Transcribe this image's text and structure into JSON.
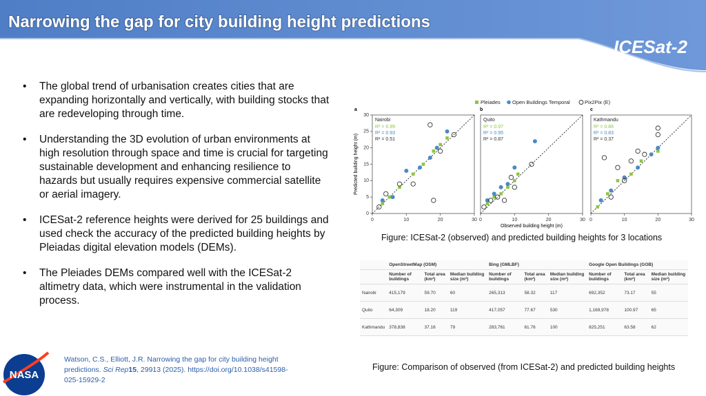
{
  "header": {
    "title": "Narrowing the gap for city building height predictions",
    "logo": "ICESat-2"
  },
  "bullets": [
    "The global trend of urbanisation creates cities that are expanding horizontally and vertically, with building stocks that are redeveloping through time.",
    "Understanding the 3D evolution of urban environments at high resolution through space and time is crucial for targeting sustainable development and enhancing resilience to hazards but usually requires expensive commercial satellite or aerial imagery.",
    "ICESat-2 reference heights were derived for 25 buildings and used check the accuracy of the predicted building heights by Pleiadas digital elevation models (DEMs).",
    "The Pleiades DEMs compared well with the ICESat-2 altimetry data, which were instrumental in the validation process."
  ],
  "chart_data": [
    {
      "type": "scatter",
      "panel": "a",
      "location": "Nairobi",
      "annotations": [
        "R² = 0.99",
        "R² = 0.93",
        "R² = 0.51"
      ],
      "ylabel": "Predicted building height (m)",
      "xlim": [
        0,
        30
      ],
      "ylim": [
        0,
        30
      ],
      "xticks": [
        0,
        10,
        20,
        30
      ],
      "yticks": [
        0,
        5,
        10,
        15,
        20,
        25,
        30
      ],
      "series": [
        {
          "name": "Pleiades",
          "color": "#8dc63f",
          "x": [
            3,
            5,
            8,
            12,
            15,
            18,
            20,
            22
          ],
          "values": [
            3,
            5,
            8,
            12,
            15,
            19,
            21,
            23
          ]
        },
        {
          "name": "Open Buildings Temporal",
          "color": "#4a8ac6",
          "x": [
            3,
            6,
            10,
            14,
            17,
            19,
            22
          ],
          "values": [
            4,
            5,
            13,
            14,
            17,
            20,
            25
          ]
        },
        {
          "name": "Pix2Pix (E)",
          "color": "#333333",
          "x": [
            2,
            4,
            8,
            12,
            17,
            18,
            20,
            24
          ],
          "values": [
            2,
            6,
            9,
            9,
            27,
            4,
            19,
            24
          ]
        }
      ]
    },
    {
      "type": "scatter",
      "panel": "b",
      "location": "Quito",
      "annotations": [
        "R² = 0.97",
        "R² = 0.95",
        "R² = 0.87"
      ],
      "xlabel": "Observed building height (m)",
      "xlim": [
        0,
        30
      ],
      "ylim": [
        0,
        30
      ],
      "xticks": [
        0,
        10,
        20,
        30
      ],
      "series": [
        {
          "name": "Pleiades",
          "color": "#8dc63f",
          "x": [
            2,
            4,
            6,
            8,
            10,
            11
          ],
          "values": [
            3,
            5,
            6,
            8,
            10,
            12
          ]
        },
        {
          "name": "Open Buildings Temporal",
          "color": "#4a8ac6",
          "x": [
            2,
            4,
            6,
            8,
            10,
            16
          ],
          "values": [
            4,
            6,
            8,
            9,
            14,
            22
          ]
        },
        {
          "name": "Pix2Pix (E)",
          "color": "#333333",
          "x": [
            1,
            3,
            5,
            7,
            9,
            10,
            15
          ],
          "values": [
            2,
            4,
            5,
            4,
            11,
            8,
            15
          ]
        }
      ]
    },
    {
      "type": "scatter",
      "panel": "c",
      "location": "Kathmandu",
      "annotations": [
        "R² = 0.86",
        "R² = 0.83",
        "R² = 0.37"
      ],
      "xlim": [
        0,
        30
      ],
      "ylim": [
        0,
        30
      ],
      "xticks": [
        0,
        10,
        20,
        30
      ],
      "series": [
        {
          "name": "Pleiades",
          "color": "#8dc63f",
          "x": [
            2,
            5,
            8,
            12,
            15,
            20
          ],
          "values": [
            2,
            6,
            10,
            12,
            16,
            19
          ]
        },
        {
          "name": "Open Buildings Temporal",
          "color": "#4a8ac6",
          "x": [
            3,
            6,
            10,
            14,
            18,
            20
          ],
          "values": [
            4,
            7,
            11,
            14,
            18,
            20
          ]
        },
        {
          "name": "Pix2Pix (E)",
          "color": "#333333",
          "x": [
            4,
            8,
            10,
            12,
            14,
            16,
            20,
            20,
            6
          ],
          "values": [
            17,
            14,
            10,
            16,
            19,
            18,
            26,
            24,
            5
          ]
        }
      ]
    }
  ],
  "figure_caption": "Figure: ICESat-2 (observed) and predicted building heights for 3 locations",
  "table": {
    "groups": [
      "OpenStreetMap (OSM)",
      "Bing (GMLBF)",
      "Google Open Buildings (GOB)"
    ],
    "columns": [
      "Number of buildings",
      "Total area (km²)",
      "Median building size (m²)"
    ],
    "rows": [
      [
        "Nairobi",
        "415,179",
        "59.70",
        "60",
        "265,313",
        "58.32",
        "117",
        "692,352",
        "73.17",
        "55"
      ],
      [
        "Quito",
        "64,309",
        "18.20",
        "119",
        "417,057",
        "77.67",
        "530",
        "1,169,978",
        "100.97",
        "65"
      ],
      [
        "Kathmandu",
        "378,838",
        "37.16",
        "79",
        "283,761",
        "61.76",
        "100",
        "825,251",
        "63.58",
        "62"
      ]
    ]
  },
  "table_caption": "Figure: Comparison of observed (from ICESat-2) and predicted building heights",
  "reference": {
    "authors": "Watson, C.S., Elliott, J.R. Narrowing the gap for city building height predictions. ",
    "journal": "Sci Rep",
    "volume": "15",
    "rest": ", 29913 (2025). https://doi.org/10.1038/s41598-025-15929-2"
  },
  "nasa_logo": "NASA"
}
